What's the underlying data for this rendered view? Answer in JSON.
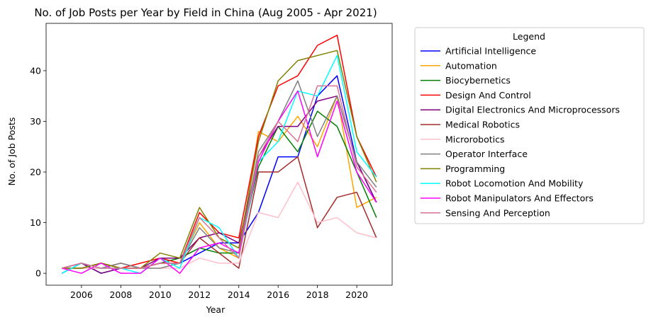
{
  "chart_data": {
    "type": "line",
    "title": "No. of Job Posts per Year by Field in China (Aug 2005 - Apr 2021)",
    "xlabel": "Year",
    "ylabel": "No. of Job Posts",
    "xlim": [
      2004.2,
      2021.8
    ],
    "ylim": [
      -2.35,
      49.35
    ],
    "xticks": [
      2006,
      2008,
      2010,
      2012,
      2014,
      2016,
      2018,
      2020
    ],
    "yticks": [
      0,
      10,
      20,
      30,
      40
    ],
    "grid": false,
    "legend": {
      "title": "Legend",
      "placement": "outside-right"
    },
    "x": [
      2005,
      2006,
      2007,
      2008,
      2009,
      2010,
      2011,
      2012,
      2013,
      2014,
      2015,
      2016,
      2017,
      2018,
      2019,
      2020,
      2021
    ],
    "series": [
      {
        "name": "Artificial Intelligence",
        "color": "#0000ff",
        "values": [
          0,
          2,
          0,
          1,
          1,
          2,
          2,
          4,
          6,
          6,
          12,
          23,
          23,
          35,
          39,
          22,
          14
        ]
      },
      {
        "name": "Automation",
        "color": "#ffa500",
        "values": [
          1,
          1,
          2,
          1,
          1,
          2,
          2,
          10,
          5,
          3,
          28,
          26,
          31,
          25,
          35,
          13,
          15
        ]
      },
      {
        "name": "Biocybernetics",
        "color": "#008000",
        "values": [
          1,
          1,
          2,
          1,
          1,
          2,
          3,
          5,
          4,
          4,
          21,
          29,
          24,
          32,
          29,
          20,
          11
        ]
      },
      {
        "name": "Design And Control",
        "color": "#ff0000",
        "values": [
          1,
          1,
          2,
          1,
          2,
          3,
          2,
          12,
          8,
          7,
          27,
          37,
          39,
          45,
          47,
          27,
          19
        ]
      },
      {
        "name": "Digital Electronics And Microprocessors",
        "color": "#800080",
        "values": [
          1,
          2,
          0,
          1,
          1,
          3,
          3,
          7,
          8,
          6,
          23,
          29,
          29,
          34,
          35,
          22,
          14
        ]
      },
      {
        "name": "Medical Robotics",
        "color": "#a52a2a",
        "values": [
          1,
          1,
          1,
          2,
          1,
          2,
          2,
          7,
          4,
          1,
          20,
          20,
          23,
          9,
          15,
          16,
          7
        ]
      },
      {
        "name": "Microrobotics",
        "color": "#ffc0cb",
        "values": [
          1,
          1,
          1,
          1,
          1,
          1,
          1,
          3,
          2,
          2,
          12,
          11,
          18,
          10,
          11,
          8,
          7
        ]
      },
      {
        "name": "Operator Interface",
        "color": "#808080",
        "values": [
          1,
          2,
          1,
          2,
          1,
          1,
          2,
          9,
          5,
          4,
          24,
          30,
          38,
          27,
          35,
          22,
          17
        ]
      },
      {
        "name": "Programming",
        "color": "#808000",
        "values": [
          1,
          1,
          2,
          1,
          1,
          4,
          3,
          13,
          7,
          5,
          26,
          38,
          42,
          43,
          44,
          27,
          18
        ]
      },
      {
        "name": "Robot Locomotion And Mobility",
        "color": "#00ffff",
        "values": [
          0,
          2,
          1,
          1,
          0,
          3,
          1,
          11,
          9,
          3,
          22,
          26,
          36,
          35,
          43,
          24,
          19
        ]
      },
      {
        "name": "Robot Manipulators And Effectors",
        "color": "#ff00ff",
        "values": [
          1,
          0,
          2,
          0,
          0,
          3,
          0,
          5,
          6,
          4,
          22,
          30,
          36,
          23,
          34,
          20,
          14
        ]
      },
      {
        "name": "Sensing And Perception",
        "color": "#db7093",
        "values": [
          1,
          2,
          1,
          1,
          1,
          2,
          2,
          11,
          7,
          3,
          23,
          30,
          26,
          37,
          37,
          21,
          16
        ]
      }
    ]
  }
}
